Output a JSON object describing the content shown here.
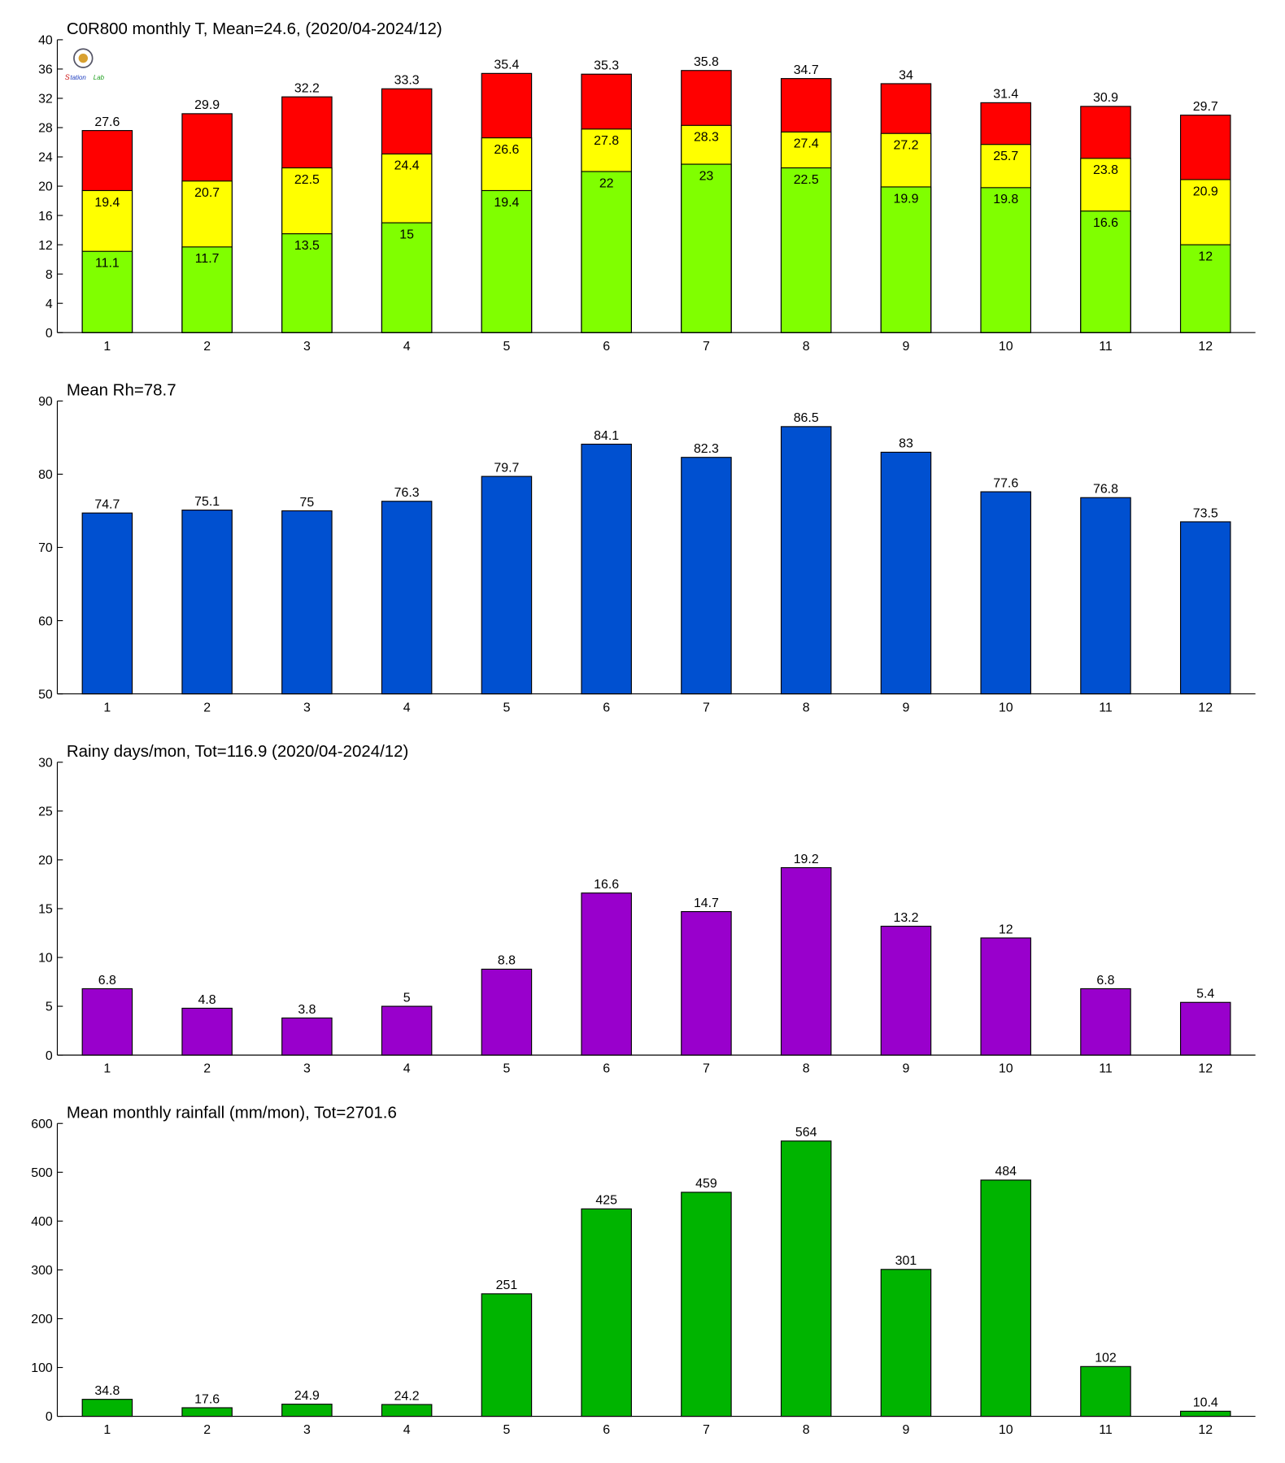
{
  "chart_data": [
    {
      "type": "bar",
      "barmode": "overlay",
      "title": "C0R800 monthly T, Mean=24.6, (2020/04-2024/12)",
      "categories": [
        "1",
        "2",
        "3",
        "4",
        "5",
        "6",
        "7",
        "8",
        "9",
        "10",
        "11",
        "12"
      ],
      "series": [
        {
          "color": "#ff0000",
          "values": [
            27.6,
            29.9,
            32.2,
            33.3,
            35.4,
            35.3,
            35.8,
            34.7,
            34,
            31.4,
            30.9,
            29.7
          ]
        },
        {
          "color": "#ffff00",
          "values": [
            19.4,
            20.7,
            22.5,
            24.4,
            26.6,
            27.8,
            28.3,
            27.4,
            27.2,
            25.7,
            23.8,
            20.9
          ]
        },
        {
          "color": "#80ff00",
          "values": [
            11.1,
            11.7,
            13.5,
            15,
            19.4,
            22,
            23,
            22.5,
            19.9,
            19.8,
            16.6,
            12
          ]
        }
      ],
      "ylim": [
        0,
        40
      ],
      "yticks": [
        0,
        4,
        8,
        12,
        16,
        20,
        24,
        28,
        32,
        36,
        40
      ]
    },
    {
      "type": "bar",
      "title": "Mean Rh=78.7",
      "categories": [
        "1",
        "2",
        "3",
        "4",
        "5",
        "6",
        "7",
        "8",
        "9",
        "10",
        "11",
        "12"
      ],
      "series": [
        {
          "color": "#0050d0",
          "values": [
            74.7,
            75.1,
            75,
            76.3,
            79.7,
            84.1,
            82.3,
            86.5,
            83,
            77.6,
            76.8,
            73.5
          ]
        }
      ],
      "ylim": [
        50,
        90
      ],
      "yticks": [
        50,
        60,
        70,
        80,
        90
      ]
    },
    {
      "type": "bar",
      "title": "Rainy days/mon, Tot=116.9 (2020/04-2024/12)",
      "categories": [
        "1",
        "2",
        "3",
        "4",
        "5",
        "6",
        "7",
        "8",
        "9",
        "10",
        "11",
        "12"
      ],
      "series": [
        {
          "color": "#9900cc",
          "values": [
            6.8,
            4.8,
            3.8,
            5,
            8.8,
            16.6,
            14.7,
            19.2,
            13.2,
            12,
            6.8,
            5.4
          ]
        }
      ],
      "ylim": [
        0,
        30
      ],
      "yticks": [
        0,
        5,
        10,
        15,
        20,
        25,
        30
      ]
    },
    {
      "type": "bar",
      "title": "Mean monthly rainfall (mm/mon), Tot=2701.6",
      "categories": [
        "1",
        "2",
        "3",
        "4",
        "5",
        "6",
        "7",
        "8",
        "9",
        "10",
        "11",
        "12"
      ],
      "series": [
        {
          "color": "#00b400",
          "values": [
            34.8,
            17.6,
            24.9,
            24.2,
            251,
            425,
            459,
            564,
            301,
            484,
            102,
            10.4
          ]
        }
      ],
      "ylim": [
        0,
        600
      ],
      "yticks": [
        0,
        100,
        200,
        300,
        400,
        500,
        600
      ]
    }
  ]
}
